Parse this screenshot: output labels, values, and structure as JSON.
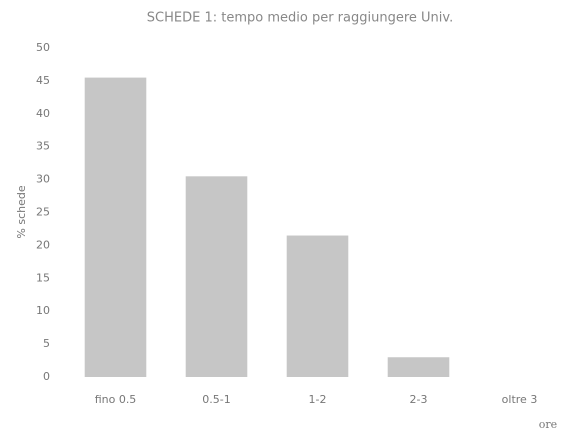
{
  "chart_data": {
    "type": "bar",
    "title": "SCHEDE 1: tempo medio per raggiungere Univ.",
    "x_label": "ore",
    "y_label": "% schede",
    "categories": [
      "fino 0.5",
      "0.5-1",
      "1-2",
      "2-3",
      "oltre 3"
    ],
    "values": [
      45.5,
      30.5,
      21.5,
      3,
      0
    ],
    "color": "#c6c6c6",
    "ylim": [
      0,
      50
    ],
    "yticks": [
      0,
      5,
      10,
      15,
      20,
      25,
      30,
      35,
      40,
      45,
      50
    ],
    "grid": false
  }
}
